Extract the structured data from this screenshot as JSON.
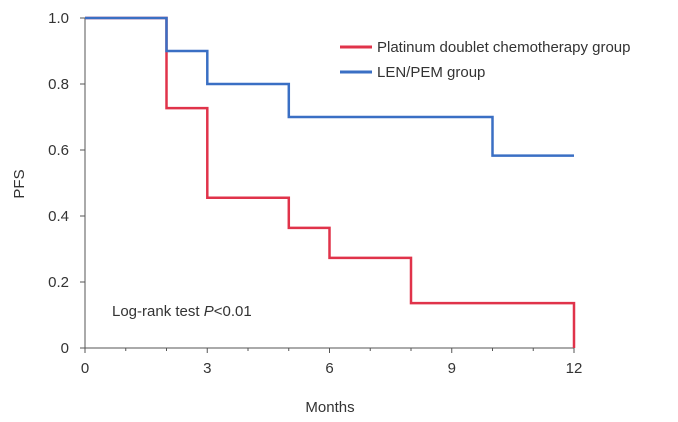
{
  "chart_data": {
    "type": "line",
    "step": true,
    "title": "",
    "xlabel": "Months",
    "ylabel": "PFS",
    "xlim": [
      0,
      12
    ],
    "ylim": [
      0,
      1.0
    ],
    "xticks": [
      0,
      3,
      6,
      9,
      12
    ],
    "xtick_labels": [
      "0",
      "3",
      "6",
      "9",
      "12"
    ],
    "x_minor_ticks": [
      1,
      2,
      4,
      5,
      7,
      8,
      10,
      11
    ],
    "yticks": [
      0,
      0.2,
      0.4,
      0.6,
      0.8,
      1.0
    ],
    "ytick_labels": [
      "0",
      "0.2",
      "0.4",
      "0.6",
      "0.8",
      "1.0"
    ],
    "legend_position": "top-right",
    "annotation": {
      "prefix": "Log-rank test ",
      "p_symbol": "P",
      "suffix": "<0.01"
    },
    "series": [
      {
        "name": "Platinum doublet chemotherapy group",
        "color": "#e0334a",
        "points": [
          [
            0,
            1.0
          ],
          [
            2,
            1.0
          ],
          [
            2,
            0.727
          ],
          [
            3,
            0.727
          ],
          [
            3,
            0.455
          ],
          [
            5,
            0.455
          ],
          [
            5,
            0.364
          ],
          [
            6,
            0.364
          ],
          [
            6,
            0.273
          ],
          [
            8,
            0.273
          ],
          [
            8,
            0.136
          ],
          [
            12,
            0.136
          ],
          [
            12,
            0
          ]
        ]
      },
      {
        "name": "LEN/PEM group",
        "color": "#3a6fc4",
        "points": [
          [
            0,
            1.0
          ],
          [
            2,
            1.0
          ],
          [
            2,
            0.9
          ],
          [
            3,
            0.9
          ],
          [
            3,
            0.8
          ],
          [
            5,
            0.8
          ],
          [
            5,
            0.7
          ],
          [
            10,
            0.7
          ],
          [
            10,
            0.583
          ],
          [
            12,
            0.583
          ]
        ]
      }
    ]
  }
}
